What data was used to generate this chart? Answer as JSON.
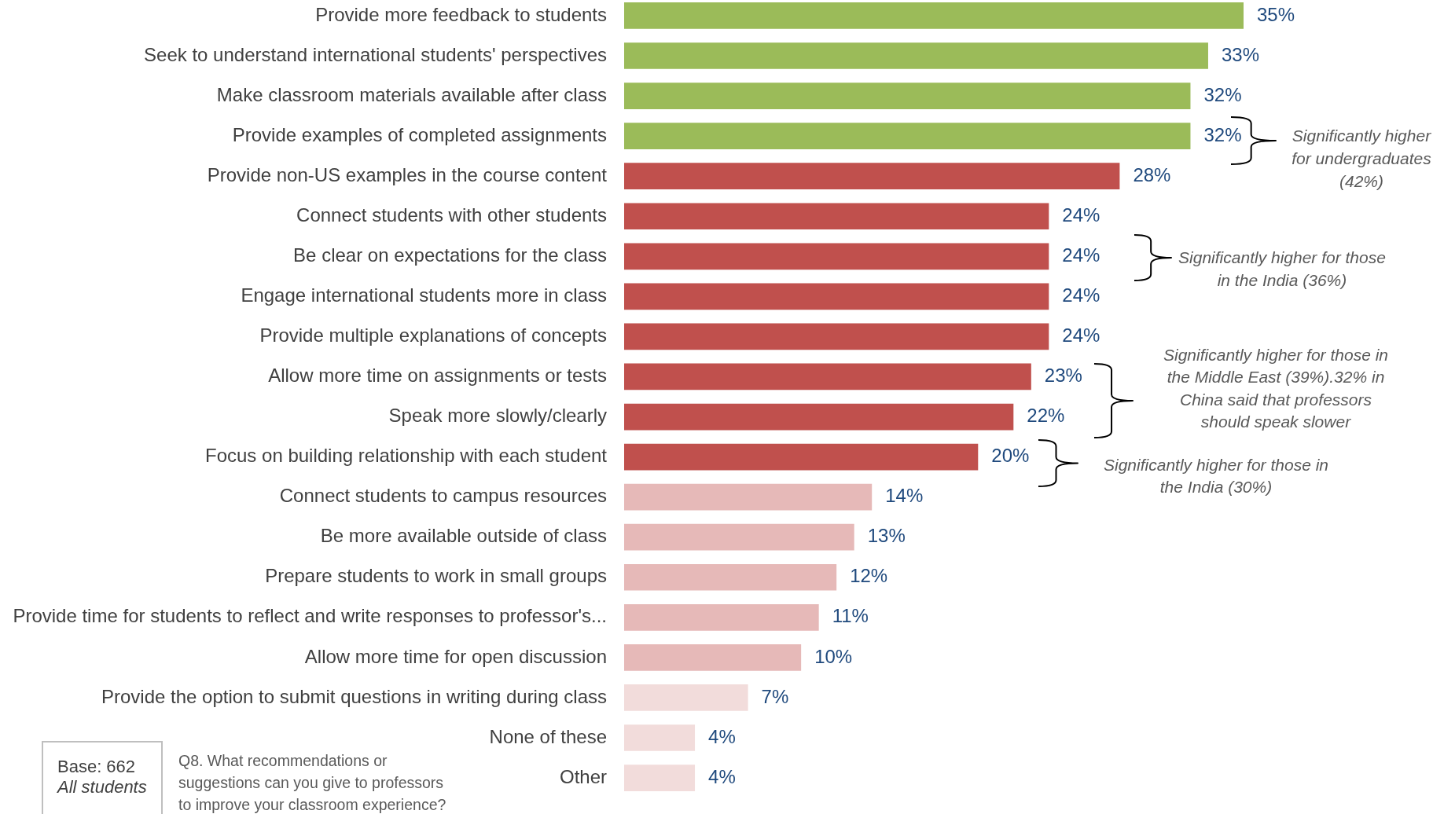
{
  "chart_data": {
    "type": "bar",
    "orientation": "horizontal",
    "legend": false,
    "tick_labels": "y",
    "categories": [
      "Provide more feedback to students",
      "Seek to understand international students' perspectives",
      "Make classroom materials available after class",
      "Provide examples of completed assignments",
      "Provide non-US examples in the course content",
      "Connect students with other students",
      "Be clear on expectations for the class",
      "Engage international students more in class",
      "Provide multiple explanations of concepts",
      "Allow more time on assignments or tests",
      "Speak more slowly/clearly",
      "Focus on building relationship with each student",
      "Connect students to campus resources",
      "Be more available outside of class",
      "Prepare students to work in small groups",
      "Provide time for students to reflect and write responses to professor's...",
      "Allow more time for open discussion",
      "Provide the option to submit questions in writing during class",
      "None of these",
      "Other"
    ],
    "values": [
      35,
      33,
      32,
      32,
      28,
      24,
      24,
      24,
      24,
      23,
      22,
      20,
      14,
      13,
      12,
      11,
      10,
      7,
      4,
      4
    ],
    "value_labels": [
      "35%",
      "33%",
      "32%",
      "32%",
      "28%",
      "24%",
      "24%",
      "24%",
      "24%",
      "23%",
      "22%",
      "20%",
      "14%",
      "13%",
      "12%",
      "11%",
      "10%",
      "7%",
      "4%",
      "4%"
    ],
    "colors": [
      "#9bbb59",
      "#9bbb59",
      "#9bbb59",
      "#9bbb59",
      "#c0504d",
      "#c0504d",
      "#c0504d",
      "#c0504d",
      "#c0504d",
      "#c0504d",
      "#c0504d",
      "#c0504d",
      "#e6b9b8",
      "#e6b9b8",
      "#e6b9b8",
      "#e6b9b8",
      "#e6b9b8",
      "#f2dcdb",
      "#f2dcdb",
      "#f2dcdb"
    ],
    "annotations": [
      "Significantly higher for undergraduates (42%)",
      "Significantly higher for those in the India (36%)",
      "Significantly higher for those in the Middle East (39%).32% in China said that professors should speak slower",
      "Significantly higher for those in the India (30%)",
      "Base: 662",
      "All students",
      "Q8. What recommendations or suggestions can you give to professors to improve your classroom experience?"
    ]
  }
}
